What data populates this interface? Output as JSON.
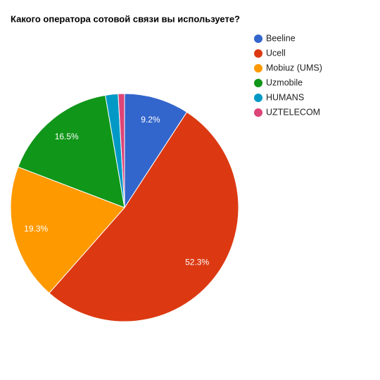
{
  "chart_data": {
    "type": "pie",
    "title": "Какого оператора сотовой связи вы используете?",
    "categories": [
      "Beeline",
      "Ucell",
      "Mobiuz (UMS)",
      "Uzmobile",
      "HUMANS",
      "UZTELECOM"
    ],
    "values": [
      9.2,
      52.3,
      19.3,
      16.5,
      1.8,
      0.9
    ],
    "value_labels": [
      "9.2%",
      "52.3%",
      "19.3%",
      "16.5%",
      null,
      null
    ],
    "colors": [
      "#3366cc",
      "#dc3912",
      "#ff9900",
      "#109618",
      "#0099c6",
      "#dd4477"
    ],
    "legend": "right"
  }
}
